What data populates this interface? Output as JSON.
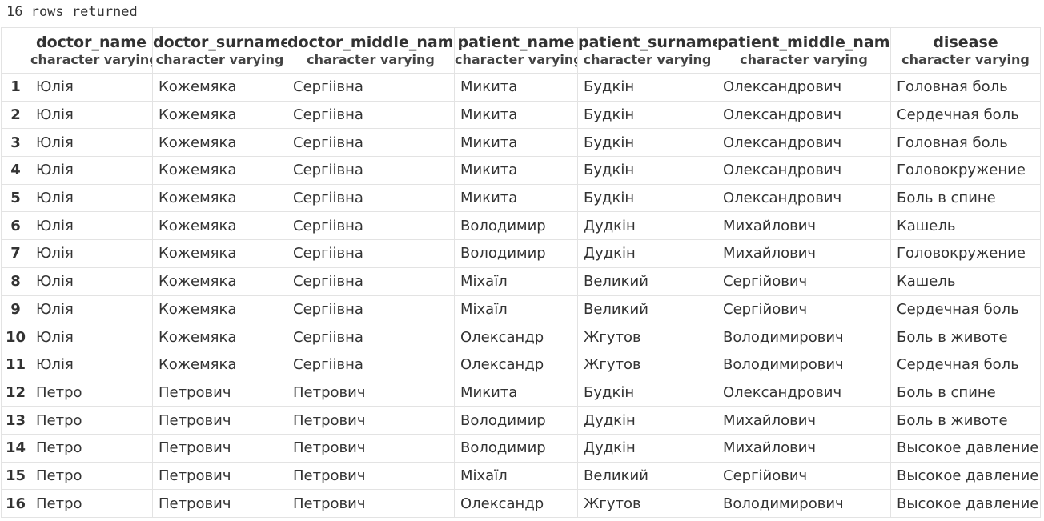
{
  "status": "16 rows returned",
  "columns": [
    {
      "name": "doctor_name",
      "type": "character varying"
    },
    {
      "name": "doctor_surname",
      "type": "character varying"
    },
    {
      "name": "doctor_middle_name",
      "type": "character varying"
    },
    {
      "name": "patient_name",
      "type": "character varying"
    },
    {
      "name": "patient_surname",
      "type": "character varying"
    },
    {
      "name": "patient_middle_name",
      "type": "character varying"
    },
    {
      "name": "disease",
      "type": "character varying"
    }
  ],
  "rows": [
    {
      "n": "1",
      "cells": [
        "Юлія",
        "Кожемяка",
        "Сергіівна",
        "Микита",
        "Будкін",
        "Олександрович",
        "Головная боль"
      ]
    },
    {
      "n": "2",
      "cells": [
        "Юлія",
        "Кожемяка",
        "Сергіівна",
        "Микита",
        "Будкін",
        "Олександрович",
        "Сердечная боль"
      ]
    },
    {
      "n": "3",
      "cells": [
        "Юлія",
        "Кожемяка",
        "Сергіівна",
        "Микита",
        "Будкін",
        "Олександрович",
        "Головная боль"
      ]
    },
    {
      "n": "4",
      "cells": [
        "Юлія",
        "Кожемяка",
        "Сергіівна",
        "Микита",
        "Будкін",
        "Олександрович",
        "Головокружение"
      ]
    },
    {
      "n": "5",
      "cells": [
        "Юлія",
        "Кожемяка",
        "Сергіівна",
        "Микита",
        "Будкін",
        "Олександрович",
        "Боль в спине"
      ]
    },
    {
      "n": "6",
      "cells": [
        "Юлія",
        "Кожемяка",
        "Сергіівна",
        "Володимир",
        "Дудкін",
        "Михайлович",
        "Кашель"
      ]
    },
    {
      "n": "7",
      "cells": [
        "Юлія",
        "Кожемяка",
        "Сергіівна",
        "Володимир",
        "Дудкін",
        "Михайлович",
        "Головокружение"
      ]
    },
    {
      "n": "8",
      "cells": [
        "Юлія",
        "Кожемяка",
        "Сергіівна",
        "Міхаїл",
        "Великий",
        "Сергійович",
        "Кашель"
      ]
    },
    {
      "n": "9",
      "cells": [
        "Юлія",
        "Кожемяка",
        "Сергіівна",
        "Міхаїл",
        "Великий",
        "Сергійович",
        "Сердечная боль"
      ]
    },
    {
      "n": "10",
      "cells": [
        "Юлія",
        "Кожемяка",
        "Сергіівна",
        "Олександр",
        "Жгутов",
        "Володимирович",
        "Боль в животе"
      ]
    },
    {
      "n": "11",
      "cells": [
        "Юлія",
        "Кожемяка",
        "Сергіівна",
        "Олександр",
        "Жгутов",
        "Володимирович",
        "Сердечная боль"
      ]
    },
    {
      "n": "12",
      "cells": [
        "Петро",
        "Петрович",
        "Петрович",
        "Микита",
        "Будкін",
        "Олександрович",
        "Боль в спине"
      ]
    },
    {
      "n": "13",
      "cells": [
        "Петро",
        "Петрович",
        "Петрович",
        "Володимир",
        "Дудкін",
        "Михайлович",
        "Боль в животе"
      ]
    },
    {
      "n": "14",
      "cells": [
        "Петро",
        "Петрович",
        "Петрович",
        "Володимир",
        "Дудкін",
        "Михайлович",
        "Высокое давление"
      ]
    },
    {
      "n": "15",
      "cells": [
        "Петро",
        "Петрович",
        "Петрович",
        "Міхаїл",
        "Великий",
        "Сергійович",
        "Высокое давление"
      ]
    },
    {
      "n": "16",
      "cells": [
        "Петро",
        "Петрович",
        "Петрович",
        "Олександр",
        "Жгутов",
        "Володимирович",
        "Высокое давление"
      ]
    }
  ]
}
